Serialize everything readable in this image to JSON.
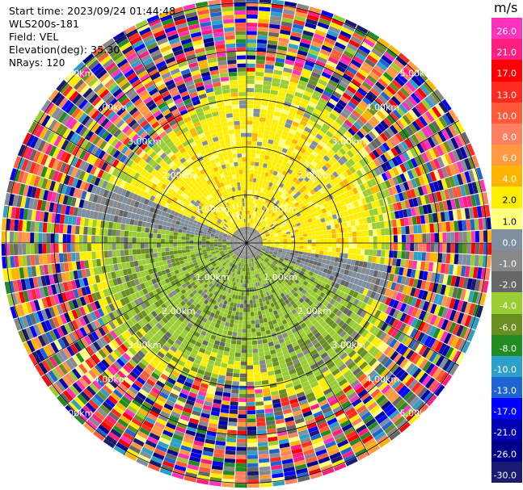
{
  "header": {
    "start_time": "Start time: 2023/09/24 01:44:48",
    "site": "WLS200s-181",
    "field": "Field: VEL",
    "elevation": "Elevation(deg): 35.30",
    "nrays": "NRays: 120"
  },
  "colorbar": {
    "unit": "m/s",
    "ticks": [
      "26.0",
      "21.0",
      "17.0",
      "13.0",
      "10.0",
      "8.0",
      "6.0",
      "4.0",
      "2.0",
      "1.0",
      "0.0",
      "-1.0",
      "-2.0",
      "-4.0",
      "-6.0",
      "-8.0",
      "-10.0",
      "-13.0",
      "-17.0",
      "-21.0",
      "-26.0",
      "-30.0"
    ],
    "colors": [
      "#ff33bb",
      "#ff1f80",
      "#ff0000",
      "#ff2a20",
      "#ff5a3a",
      "#ff8060",
      "#ff9a40",
      "#ffb400",
      "#ffee00",
      "#ffff80",
      "#7f8fa0",
      "#888888",
      "#666666",
      "#9acd32",
      "#6b8e23",
      "#228b22",
      "#2ea0c8",
      "#1e64d2",
      "#0000ff",
      "#0000b0",
      "#00008b",
      "#1a1a70"
    ]
  },
  "chart_data": {
    "type": "heatmap",
    "subtype": "radar PPI (plan position indicator)",
    "field": "VEL",
    "units": "m/s",
    "nrays": 120,
    "range_ring_labels_km": [
      "1.00km",
      "2.00km",
      "3.00km",
      "4.00km",
      "5.00km"
    ],
    "range_rings_km": [
      1,
      2,
      3,
      4,
      5
    ],
    "max_range_km": 5.1,
    "color_scale_ticks": [
      26.0,
      21.0,
      17.0,
      13.0,
      10.0,
      8.0,
      6.0,
      4.0,
      2.0,
      1.0,
      0.0,
      -1.0,
      -2.0,
      -4.0,
      -6.0,
      -8.0,
      -10.0,
      -13.0,
      -17.0,
      -21.0,
      -26.0,
      -30.0
    ],
    "pattern": {
      "inner_region_km": 3.2,
      "north_half": "positive (yellow, ~2 to 1 m/s)",
      "south_half": "negative (green, ~-1 to -4 m/s)",
      "outer_region": "noise (random colors)"
    },
    "grid": true
  }
}
